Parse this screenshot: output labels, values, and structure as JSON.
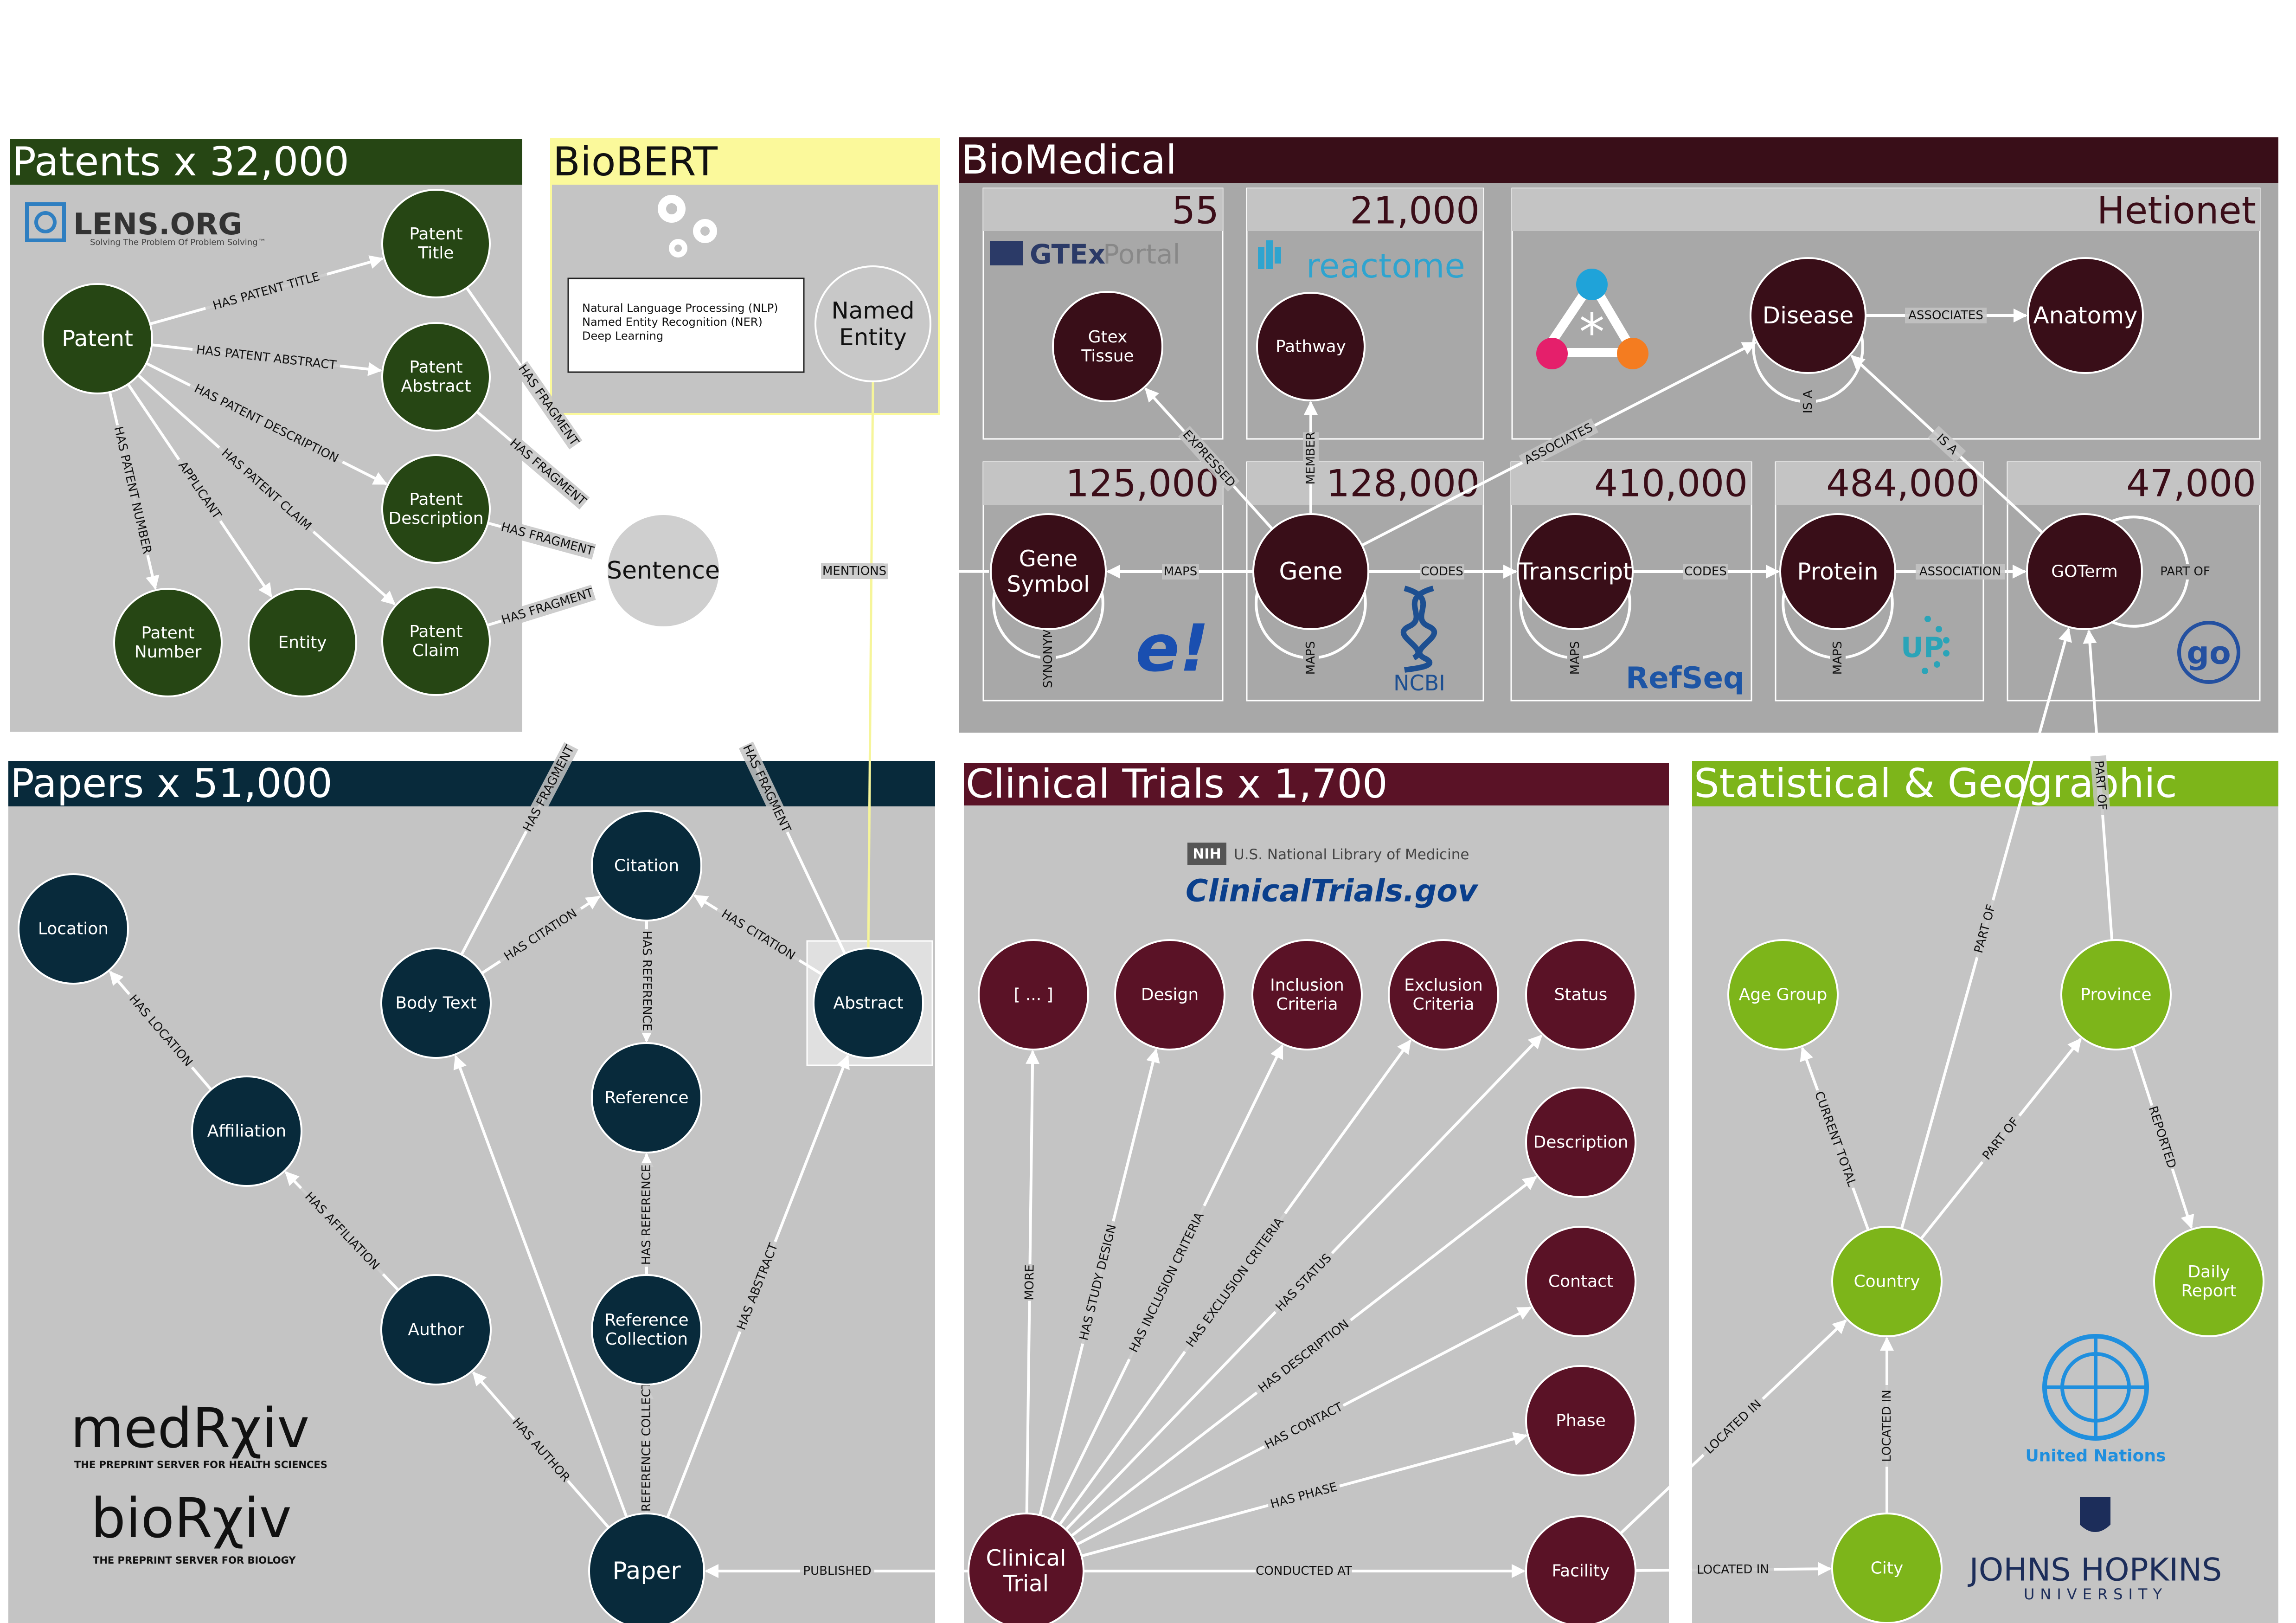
{
  "panels": {
    "patents": {
      "title": "Patents x 32,000",
      "color": "#264614"
    },
    "biobert": {
      "title": "BioBERT",
      "color": "#fbf99b"
    },
    "biomedical": {
      "title": "BioMedical",
      "color": "#390e18"
    },
    "papers": {
      "title": "Papers x 51,000",
      "color": "#082a3b"
    },
    "clinical": {
      "title": "Clinical Trials x 1,700",
      "color": "#5a1226"
    },
    "stat": {
      "title": "Statistical & Geographic",
      "color": "#7db51a"
    }
  },
  "biobert_box": {
    "lines": [
      "Natural Language Processing (NLP)",
      "Named Entity Recognition (NER)",
      "Deep Learning"
    ]
  },
  "biomedical_counts": {
    "gtex": "55",
    "reactome": "21,000",
    "hetionet": "Hetionet",
    "gene_symbol": "125,000",
    "gene": "128,000",
    "transcript": "410,000",
    "protein": "484,000",
    "goterm": "47,000"
  },
  "logos": {
    "lens": "LENS.ORG",
    "lens_tagline": "Solving The Problem Of Problem Solving™",
    "gtex": "GTEx",
    "gtex_portal": "Portal",
    "reactome": "reactome",
    "ncbi": "NCBI",
    "refseq": "RefSeq",
    "uniprot": "UP",
    "ensembl": "e!",
    "nih_badge": "NIH",
    "nlm": "U.S. National Library of Medicine",
    "clinicaltrials": "ClinicalTrials.gov",
    "medrxiv": "medRχiv",
    "medrxiv_tagline": "THE PREPRINT SERVER FOR HEALTH SCIENCES",
    "biorxiv": "bioRχiv",
    "biorxiv_tagline": "THE PREPRINT SERVER FOR BIOLOGY",
    "un": "United Nations",
    "jhu": "JOHNS HOPKINS",
    "jhu_sub": "UNIVERSITY"
  },
  "nodes": [
    {
      "id": "patent",
      "lines": [
        "Patent"
      ],
      "color": "#264614"
    },
    {
      "id": "patent_title",
      "lines": [
        "Patent",
        "Title"
      ],
      "color": "#264614"
    },
    {
      "id": "patent_abstract",
      "lines": [
        "Patent",
        "Abstract"
      ],
      "color": "#264614"
    },
    {
      "id": "patent_description",
      "lines": [
        "Patent",
        "Description"
      ],
      "color": "#264614"
    },
    {
      "id": "patent_claim",
      "lines": [
        "Patent",
        "Claim"
      ],
      "color": "#264614"
    },
    {
      "id": "patent_number",
      "lines": [
        "Patent",
        "Number"
      ],
      "color": "#264614"
    },
    {
      "id": "entity",
      "lines": [
        "Entity"
      ],
      "color": "#264614"
    },
    {
      "id": "named_entity",
      "lines": [
        "Named",
        "Entity"
      ],
      "color": "#c8c8c8"
    },
    {
      "id": "sentence",
      "lines": [
        "Sentence"
      ],
      "color": "#cfcfcf"
    },
    {
      "id": "gtex_tissue",
      "lines": [
        "Gtex",
        "Tissue"
      ],
      "color": "#390e18"
    },
    {
      "id": "pathway",
      "lines": [
        "Pathway"
      ],
      "color": "#390e18"
    },
    {
      "id": "disease",
      "lines": [
        "Disease"
      ],
      "color": "#390e18"
    },
    {
      "id": "anatomy",
      "lines": [
        "Anatomy"
      ],
      "color": "#390e18"
    },
    {
      "id": "gene_symbol",
      "lines": [
        "Gene",
        "Symbol"
      ],
      "color": "#390e18"
    },
    {
      "id": "gene",
      "lines": [
        "Gene"
      ],
      "color": "#390e18"
    },
    {
      "id": "transcript",
      "lines": [
        "Transcript"
      ],
      "color": "#390e18"
    },
    {
      "id": "protein",
      "lines": [
        "Protein"
      ],
      "color": "#390e18"
    },
    {
      "id": "goterm",
      "lines": [
        "GOTerm"
      ],
      "color": "#390e18"
    },
    {
      "id": "location",
      "lines": [
        "Location"
      ],
      "color": "#082a3b"
    },
    {
      "id": "affiliation",
      "lines": [
        "Affiliation"
      ],
      "color": "#082a3b"
    },
    {
      "id": "author",
      "lines": [
        "Author"
      ],
      "color": "#082a3b"
    },
    {
      "id": "body_text",
      "lines": [
        "Body Text"
      ],
      "color": "#082a3b"
    },
    {
      "id": "citation",
      "lines": [
        "Citation"
      ],
      "color": "#082a3b"
    },
    {
      "id": "reference",
      "lines": [
        "Reference"
      ],
      "color": "#082a3b"
    },
    {
      "id": "reference_collection",
      "lines": [
        "Reference",
        "Collection"
      ],
      "color": "#082a3b"
    },
    {
      "id": "abstract",
      "lines": [
        "Abstract"
      ],
      "color": "#082a3b"
    },
    {
      "id": "paper",
      "lines": [
        "Paper"
      ],
      "color": "#082a3b"
    },
    {
      "id": "ct_more",
      "lines": [
        "[ ... ]"
      ],
      "color": "#5a1226"
    },
    {
      "id": "design",
      "lines": [
        "Design"
      ],
      "color": "#5a1226"
    },
    {
      "id": "inclusion",
      "lines": [
        "Inclusion",
        "Criteria"
      ],
      "color": "#5a1226"
    },
    {
      "id": "exclusion",
      "lines": [
        "Exclusion",
        "Criteria"
      ],
      "color": "#5a1226"
    },
    {
      "id": "status",
      "lines": [
        "Status"
      ],
      "color": "#5a1226"
    },
    {
      "id": "description",
      "lines": [
        "Description"
      ],
      "color": "#5a1226"
    },
    {
      "id": "contact",
      "lines": [
        "Contact"
      ],
      "color": "#5a1226"
    },
    {
      "id": "phase",
      "lines": [
        "Phase"
      ],
      "color": "#5a1226"
    },
    {
      "id": "facility",
      "lines": [
        "Facility"
      ],
      "color": "#5a1226"
    },
    {
      "id": "clinical_trial",
      "lines": [
        "Clinical",
        "Trial"
      ],
      "color": "#5a1226"
    },
    {
      "id": "age_group",
      "lines": [
        "Age Group"
      ],
      "color": "#7db51a"
    },
    {
      "id": "province",
      "lines": [
        "Province"
      ],
      "color": "#7db51a"
    },
    {
      "id": "country",
      "lines": [
        "Country"
      ],
      "color": "#7db51a"
    },
    {
      "id": "daily_report",
      "lines": [
        "Daily",
        "Report"
      ],
      "color": "#7db51a"
    },
    {
      "id": "city",
      "lines": [
        "City"
      ],
      "color": "#7db51a"
    }
  ],
  "edges": [
    {
      "from": "patent",
      "to": "patent_title",
      "label": "HAS PATENT TITLE"
    },
    {
      "from": "patent",
      "to": "patent_abstract",
      "label": "HAS PATENT ABSTRACT"
    },
    {
      "from": "patent",
      "to": "patent_description",
      "label": "HAS PATENT DESCRIPTION"
    },
    {
      "from": "patent",
      "to": "patent_claim",
      "label": "HAS PATENT CLAIM"
    },
    {
      "from": "patent",
      "to": "patent_number",
      "label": "HAS PATENT NUMBER"
    },
    {
      "from": "patent",
      "to": "entity",
      "label": "APPLICANT"
    },
    {
      "from": "patent_title",
      "to": "sentence",
      "label": "HAS FRAGMENT"
    },
    {
      "from": "patent_abstract",
      "to": "sentence",
      "label": "HAS FRAGMENT"
    },
    {
      "from": "patent_description",
      "to": "sentence",
      "label": "HAS FRAGMENT"
    },
    {
      "from": "patent_claim",
      "to": "sentence",
      "label": "HAS FRAGMENT"
    },
    {
      "from": "sentence",
      "to": "gene_symbol",
      "label": "MENTIONS",
      "arrow": false
    },
    {
      "from": "body_text",
      "to": "sentence",
      "label": "HAS FRAGMENT"
    },
    {
      "from": "abstract",
      "to": "sentence",
      "label": "HAS FRAGMENT"
    },
    {
      "from": "gene",
      "to": "gtex_tissue",
      "label": "EXPRESSED"
    },
    {
      "from": "gene",
      "to": "pathway",
      "label": "MEMBER"
    },
    {
      "from": "gene",
      "to": "disease",
      "label": "ASSOCIATES"
    },
    {
      "from": "disease",
      "to": "anatomy",
      "label": "ASSOCIATES"
    },
    {
      "from": "goterm",
      "to": "disease",
      "label": "IS A"
    },
    {
      "from": "gene",
      "to": "gene_symbol",
      "label": "MAPS"
    },
    {
      "from": "gene",
      "to": "transcript",
      "label": "CODES"
    },
    {
      "from": "transcript",
      "to": "protein",
      "label": "CODES"
    },
    {
      "from": "protein",
      "to": "goterm",
      "label": "ASSOCIATION"
    },
    {
      "from": "country",
      "to": "goterm",
      "label": "PART OF"
    },
    {
      "from": "province",
      "to": "goterm",
      "label": "PART OF"
    },
    {
      "from": "affiliation",
      "to": "location",
      "label": "HAS LOCATION"
    },
    {
      "from": "author",
      "to": "affiliation",
      "label": "HAS AFFILIATION"
    },
    {
      "from": "paper",
      "to": "author",
      "label": "HAS AUTHOR"
    },
    {
      "from": "paper",
      "to": "body_text",
      "label": ""
    },
    {
      "from": "body_text",
      "to": "citation",
      "label": "HAS CITATION"
    },
    {
      "from": "abstract",
      "to": "citation",
      "label": "HAS CITATION"
    },
    {
      "from": "citation",
      "to": "reference",
      "label": "HAS REFERENCE"
    },
    {
      "from": "reference_collection",
      "to": "reference",
      "label": "HAS REFERENCE"
    },
    {
      "from": "paper",
      "to": "reference_collection",
      "label": "HAS REFERENCE COLLECTION"
    },
    {
      "from": "paper",
      "to": "abstract",
      "label": "HAS ABSTRACT"
    },
    {
      "from": "clinical_trial",
      "to": "paper",
      "label": "PUBLISHED"
    },
    {
      "from": "clinical_trial",
      "to": "ct_more",
      "label": "MORE"
    },
    {
      "from": "clinical_trial",
      "to": "design",
      "label": "HAS STUDY DESIGN"
    },
    {
      "from": "clinical_trial",
      "to": "inclusion",
      "label": "HAS INCLUSION CRITERIA"
    },
    {
      "from": "clinical_trial",
      "to": "exclusion",
      "label": "HAS EXCLUSION CRITERIA"
    },
    {
      "from": "clinical_trial",
      "to": "status",
      "label": "HAS STATUS"
    },
    {
      "from": "clinical_trial",
      "to": "description",
      "label": "HAS DESCRIPTION"
    },
    {
      "from": "clinical_trial",
      "to": "contact",
      "label": "HAS CONTACT"
    },
    {
      "from": "clinical_trial",
      "to": "phase",
      "label": "HAS PHASE"
    },
    {
      "from": "clinical_trial",
      "to": "facility",
      "label": "CONDUCTED AT"
    },
    {
      "from": "facility",
      "to": "city",
      "label": "LOCATED IN"
    },
    {
      "from": "facility",
      "to": "country",
      "label": "LOCATED IN"
    },
    {
      "from": "country",
      "to": "age_group",
      "label": "CURRENT TOTAL"
    },
    {
      "from": "country",
      "to": "province",
      "label": "PART OF"
    },
    {
      "from": "province",
      "to": "daily_report",
      "label": "REPORTED"
    },
    {
      "from": "city",
      "to": "country",
      "label": "LOCATED IN"
    }
  ],
  "loops": [
    {
      "node": "gene_symbol",
      "label": "SYNONYM"
    },
    {
      "node": "gene",
      "label": "MAPS"
    },
    {
      "node": "transcript",
      "label": "MAPS"
    },
    {
      "node": "protein",
      "label": "MAPS"
    },
    {
      "node": "disease",
      "label": "IS A"
    },
    {
      "node": "goterm",
      "label": "PART OF"
    }
  ],
  "links": [
    {
      "from": "named_entity",
      "to": "abstract"
    }
  ]
}
